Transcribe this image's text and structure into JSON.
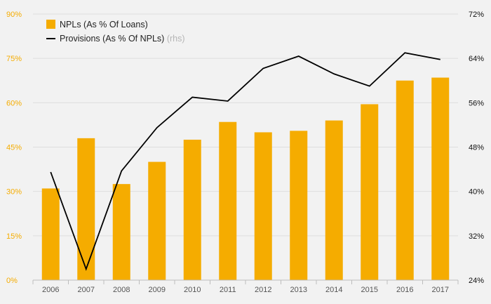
{
  "chart_data": {
    "type": "bar",
    "categories": [
      "2006",
      "2007",
      "2008",
      "2009",
      "2010",
      "2011",
      "2012",
      "2013",
      "2014",
      "2015",
      "2016",
      "2017"
    ],
    "series": [
      {
        "name": "NPLs (As % Of Loans)",
        "type": "bar",
        "axis": "left",
        "values": [
          31,
          48,
          32.5,
          40,
          47.5,
          53.5,
          50,
          50.5,
          54,
          59.5,
          67.5,
          68.5
        ],
        "color": "#f5ac00"
      },
      {
        "name": "Provisions (As % Of NPLs)",
        "name_suffix": "(rhs)",
        "type": "line",
        "axis": "right",
        "values": [
          43.5,
          26,
          43.7,
          51.5,
          57,
          56.3,
          62.2,
          64.4,
          61.2,
          59,
          65,
          63.8
        ],
        "color": "#000000"
      }
    ],
    "y_left": {
      "range": [
        0,
        90
      ],
      "ticks": [
        0,
        15,
        30,
        45,
        60,
        75,
        90
      ],
      "tick_labels": [
        "0%",
        "15%",
        "30%",
        "45%",
        "60%",
        "75%",
        "90%"
      ],
      "color": "#f5ac00"
    },
    "y_right": {
      "range": [
        24,
        72
      ],
      "ticks": [
        24,
        32,
        40,
        48,
        56,
        64,
        72
      ],
      "tick_labels": [
        "24%",
        "32%",
        "40%",
        "48%",
        "56%",
        "64%",
        "72%"
      ],
      "color": "#111111"
    },
    "grid": true,
    "legend_position": "top-left",
    "title": "",
    "xlabel": "",
    "ylabel": ""
  }
}
